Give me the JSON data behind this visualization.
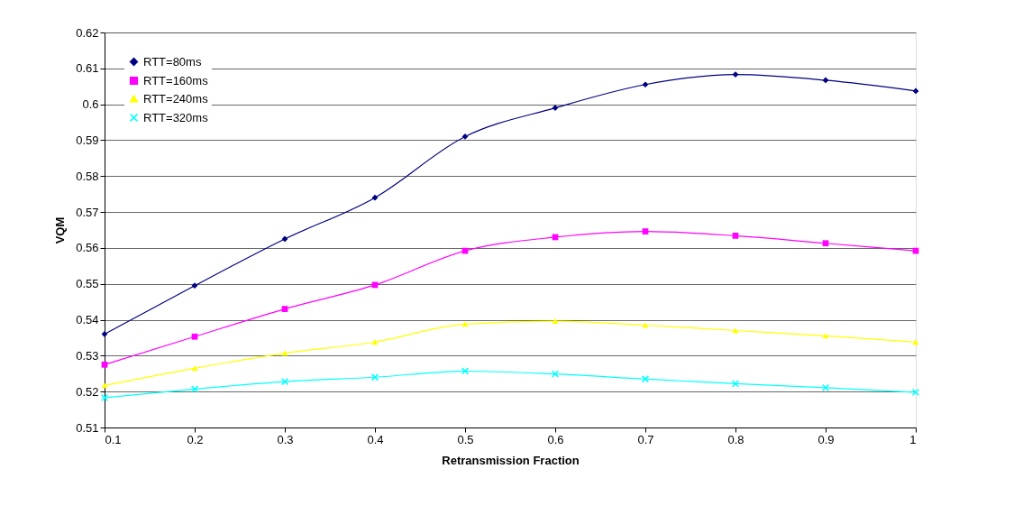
{
  "chart_data": {
    "type": "line",
    "xlabel": "Retransmission Fraction",
    "ylabel": "VQM",
    "x": [
      0.1,
      0.2,
      0.3,
      0.4,
      0.5,
      0.6,
      0.7,
      0.8,
      0.9,
      1
    ],
    "series": [
      {
        "name": "RTT=80ms",
        "color": "#000080",
        "marker": "diamond",
        "values": [
          0.536,
          0.5495,
          0.5625,
          0.574,
          0.591,
          0.599,
          0.6055,
          0.6083,
          0.6067,
          0.6037
        ]
      },
      {
        "name": "RTT=160ms",
        "color": "#ff00ff",
        "marker": "square",
        "values": [
          0.5275,
          0.5353,
          0.543,
          0.5497,
          0.5592,
          0.563,
          0.5646,
          0.5634,
          0.5613,
          0.5592
        ]
      },
      {
        "name": "RTT=240ms",
        "color": "#ffff00",
        "marker": "triangle",
        "values": [
          0.5217,
          0.5265,
          0.5307,
          0.5338,
          0.5388,
          0.5396,
          0.5385,
          0.537,
          0.5355,
          0.5338
        ]
      },
      {
        "name": "RTT=320ms",
        "color": "#00ffff",
        "marker": "cross",
        "values": [
          0.5183,
          0.5207,
          0.5228,
          0.524,
          0.5257,
          0.5249,
          0.5235,
          0.5222,
          0.5211,
          0.5198
        ]
      }
    ],
    "xlim": [
      0.1,
      1
    ],
    "xticks": [
      0.1,
      0.2,
      0.3,
      0.4,
      0.5,
      0.6,
      0.7,
      0.8,
      0.9,
      1
    ],
    "ylim": [
      0.51,
      0.62
    ],
    "yticks": [
      0.51,
      0.52,
      0.53,
      0.54,
      0.55,
      0.56,
      0.57,
      0.58,
      0.59,
      0.6,
      0.61,
      0.62
    ],
    "grid": "y",
    "legend": "top left",
    "line_style": "solid"
  }
}
